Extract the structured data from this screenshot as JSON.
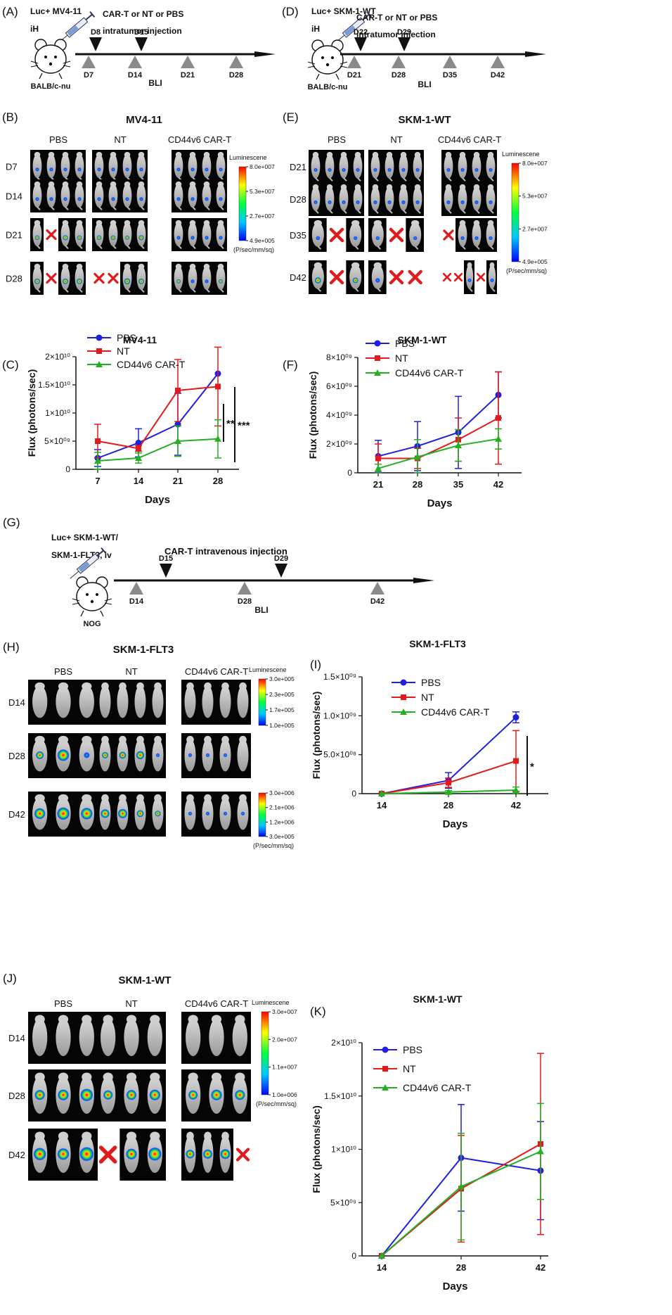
{
  "timelines": {
    "A": {
      "letter": "(A)",
      "cells": "Luc+ MV4-11",
      "route": "iH",
      "mouse": "BALB/c-nu",
      "treatment_line1": "CAR-T or NT or PBS",
      "treatment_line2": "intratumor injection",
      "injections": [
        "D8",
        "D15"
      ],
      "imaging": [
        "D7",
        "D14",
        "D21",
        "D28"
      ],
      "bli": "BLI"
    },
    "D": {
      "letter": "(D)",
      "cells": "Luc+ SKM-1-WT",
      "route": "iH",
      "mouse": "BALB/c-nu",
      "treatment_line1": "CAR-T or NT or PBS",
      "treatment_line2": "intratumor injection",
      "injections": [
        "D22",
        "D29"
      ],
      "imaging": [
        "D21",
        "D28",
        "D35",
        "D42"
      ],
      "bli": "BLI"
    },
    "G": {
      "letter": "(G)",
      "cells_line1": "Luc+ SKM-1-WT/",
      "cells_line2": "SKM-1-FLT3, iv",
      "mouse": "NOG",
      "treatment": "CAR-T intravenous injection",
      "injections": [
        "D15",
        "D29"
      ],
      "imaging": [
        "D14",
        "D28",
        "D42"
      ],
      "bli": "BLI"
    }
  },
  "panels": {
    "B": {
      "letter": "(B)",
      "title": "MV4-11",
      "groups": [
        "PBS",
        "NT",
        "CD44v6 CAR-T"
      ],
      "days": [
        "D7",
        "D14",
        "D21",
        "D28"
      ],
      "scale_title": "Luminescene",
      "scale_ticks": [
        "8.0e+007",
        "5.3e+007",
        "2.7e+007",
        "4.9e+005"
      ],
      "scale_unit": "(P/sec/mm/sq)"
    },
    "E": {
      "letter": "(E)",
      "title": "SKM-1-WT",
      "groups": [
        "PBS",
        "NT",
        "CD44v6 CAR-T"
      ],
      "days": [
        "D21",
        "D28",
        "D35",
        "D42"
      ],
      "scale_title": "Luminescene",
      "scale_ticks": [
        "8.0e+007",
        "5.3e+007",
        "2.7e+007",
        "4.9e+005"
      ],
      "scale_unit": "(P/sec/mm/sq)"
    },
    "H": {
      "letter": "(H)",
      "title": "SKM-1-FLT3",
      "groups": [
        "PBS",
        "NT",
        "CD44v6 CAR-T"
      ],
      "days": [
        "D14",
        "D28",
        "D42"
      ],
      "scale_title": "Luminescene",
      "scale_ticks": [
        "3.0e+005",
        "2.3e+005",
        "1.7e+005",
        "1.0e+005"
      ],
      "scale2_ticks": [
        "3.0e+006",
        "2.1e+006",
        "1.2e+006",
        "3.0e+005"
      ],
      "scale_unit": "(P/sec/mm/sq)"
    },
    "J": {
      "letter": "(J)",
      "title": "SKM-1-WT",
      "groups": [
        "PBS",
        "NT",
        "CD44v6 CAR-T"
      ],
      "days": [
        "D14",
        "D28",
        "D42"
      ],
      "scale_title": "Luminescene",
      "scale_ticks": [
        "3.0e+007",
        "2.0e+007",
        "1.1e+007",
        "1.0e+006"
      ],
      "scale_unit": "(P/sec/mm/sq)"
    }
  },
  "colors": {
    "PBS": "#1f1fe0",
    "NT": "#e21a1a",
    "CD44v6 CAR-T": "#22b022",
    "cross": "#e01b1b"
  },
  "chart_data": [
    {
      "panel": "(C)",
      "type": "line",
      "title": "MV4-11",
      "xlabel": "Days",
      "ylabel": "Flux (photons/sec)",
      "x": [
        7,
        14,
        21,
        28
      ],
      "yticks": [
        "0",
        "5×10⁰⁹",
        "1×10¹⁰",
        "1.5×10¹⁰",
        "2×10¹⁰"
      ],
      "ylim": [
        0,
        20000000000
      ],
      "series": [
        {
          "name": "PBS",
          "values": [
            2000000000,
            4700000000,
            8000000000,
            17000000000
          ],
          "errors": [
            1500000000,
            2500000000,
            5500000000,
            0
          ]
        },
        {
          "name": "NT",
          "values": [
            5000000000,
            3700000000,
            14000000000,
            14700000000
          ],
          "errors": [
            3000000000,
            500000000,
            5500000000,
            7000000000
          ]
        },
        {
          "name": "CD44v6 CAR-T",
          "values": [
            1500000000,
            2000000000,
            5000000000,
            5400000000
          ],
          "errors": [
            1500000000,
            900000000,
            2700000000,
            3400000000
          ]
        }
      ],
      "significance": [
        "**",
        "***"
      ]
    },
    {
      "panel": "(F)",
      "type": "line",
      "title": "SKM-1-WT",
      "xlabel": "Days",
      "ylabel": "Flux (photons/sec)",
      "x": [
        21,
        28,
        35,
        42
      ],
      "yticks": [
        "0",
        "2×10⁰⁹",
        "4×10⁰⁹",
        "6×10⁰⁹",
        "8×10⁰⁹"
      ],
      "ylim": [
        0,
        8000000000
      ],
      "series": [
        {
          "name": "PBS",
          "values": [
            1150000000,
            1850000000,
            2800000000,
            5400000000
          ],
          "errors": [
            1100000000,
            1700000000,
            2500000000,
            1600000000
          ]
        },
        {
          "name": "NT",
          "values": [
            1000000000,
            1000000000,
            2300000000,
            3800000000
          ],
          "errors": [
            1000000000,
            700000000,
            1500000000,
            3200000000
          ]
        },
        {
          "name": "CD44v6 CAR-T",
          "values": [
            300000000,
            1100000000,
            1900000000,
            2350000000
          ],
          "errors": [
            300000000,
            1200000000,
            1100000000,
            700000000
          ]
        }
      ]
    },
    {
      "panel": "(I)",
      "type": "line",
      "title": "SKM-1-FLT3",
      "xlabel": "Days",
      "ylabel": "Flux (photons/sec)",
      "x": [
        14,
        28,
        42
      ],
      "yticks": [
        "0",
        "5.0×10⁰⁸",
        "1.0×10⁰⁹",
        "1.5×10⁰⁹"
      ],
      "ylim": [
        0,
        1500000000
      ],
      "series": [
        {
          "name": "PBS",
          "values": [
            0,
            170000000,
            980000000
          ],
          "errors": [
            0,
            100000000,
            70000000
          ]
        },
        {
          "name": "NT",
          "values": [
            0,
            140000000,
            420000000
          ],
          "errors": [
            0,
            60000000,
            390000000
          ]
        },
        {
          "name": "CD44v6 CAR-T",
          "values": [
            0,
            20000000,
            45000000
          ],
          "errors": [
            0,
            20000000,
            40000000
          ]
        }
      ],
      "significance": [
        "*"
      ]
    },
    {
      "panel": "(K)",
      "type": "line",
      "title": "SKM-1-WT",
      "xlabel": "Days",
      "ylabel": "Flux (photons/sec)",
      "x": [
        14,
        28,
        42
      ],
      "yticks": [
        "0",
        "5×10⁰⁹",
        "1×10¹⁰",
        "1.5×10¹⁰",
        "2×10¹⁰"
      ],
      "ylim": [
        0,
        20000000000
      ],
      "series": [
        {
          "name": "PBS",
          "values": [
            0,
            9200000000,
            8000000000
          ],
          "errors": [
            0,
            5000000000,
            4600000000
          ]
        },
        {
          "name": "NT",
          "values": [
            0,
            6300000000,
            10500000000
          ],
          "errors": [
            0,
            5000000000,
            8500000000
          ]
        },
        {
          "name": "CD44v6 CAR-T",
          "values": [
            0,
            6500000000,
            9800000000
          ],
          "errors": [
            0,
            5000000000,
            4500000000
          ]
        }
      ]
    }
  ]
}
